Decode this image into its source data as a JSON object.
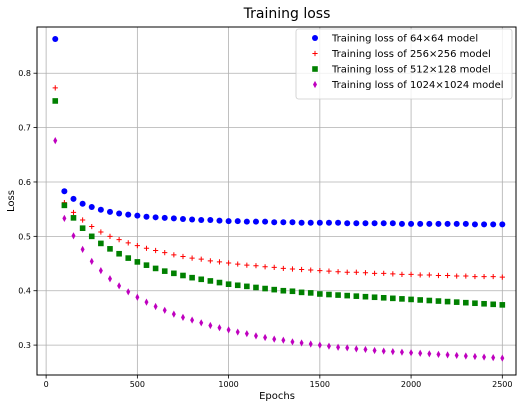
{
  "chart_data": {
    "type": "scatter",
    "title": "Training loss",
    "xlabel": "Epochs",
    "ylabel": "Loss",
    "xlim": [
      -50,
      2575
    ],
    "ylim": [
      0.245,
      0.885
    ],
    "xticks": [
      0,
      500,
      1000,
      1500,
      2000,
      2500
    ],
    "yticks": [
      0.3,
      0.4,
      0.5,
      0.6,
      0.7,
      0.8
    ],
    "grid": true,
    "legend_position": "top-right",
    "x": [
      50,
      100,
      150,
      200,
      250,
      300,
      350,
      400,
      450,
      500,
      550,
      600,
      650,
      700,
      750,
      800,
      850,
      900,
      950,
      1000,
      1050,
      1100,
      1150,
      1200,
      1250,
      1300,
      1350,
      1400,
      1450,
      1500,
      1550,
      1600,
      1650,
      1700,
      1750,
      1800,
      1850,
      1900,
      1950,
      2000,
      2050,
      2100,
      2150,
      2200,
      2250,
      2300,
      2350,
      2400,
      2450,
      2500
    ],
    "series": [
      {
        "name": "Training loss of 64×64 model",
        "color": "#0000ff",
        "marker": "circle",
        "values": [
          0.863,
          0.583,
          0.569,
          0.56,
          0.554,
          0.549,
          0.545,
          0.542,
          0.54,
          0.538,
          0.536,
          0.535,
          0.534,
          0.533,
          0.532,
          0.531,
          0.53,
          0.53,
          0.529,
          0.528,
          0.528,
          0.527,
          0.527,
          0.527,
          0.526,
          0.526,
          0.526,
          0.525,
          0.525,
          0.525,
          0.525,
          0.525,
          0.524,
          0.524,
          0.524,
          0.524,
          0.524,
          0.524,
          0.523,
          0.523,
          0.523,
          0.523,
          0.523,
          0.523,
          0.523,
          0.523,
          0.522,
          0.522,
          0.522,
          0.522
        ]
      },
      {
        "name": "Training loss of 256×256 model",
        "color": "#ff0000",
        "marker": "plus",
        "values": [
          0.773,
          0.562,
          0.544,
          0.53,
          0.518,
          0.508,
          0.5,
          0.494,
          0.488,
          0.483,
          0.478,
          0.474,
          0.47,
          0.466,
          0.463,
          0.46,
          0.458,
          0.455,
          0.453,
          0.451,
          0.449,
          0.447,
          0.446,
          0.444,
          0.443,
          0.441,
          0.44,
          0.439,
          0.438,
          0.437,
          0.436,
          0.435,
          0.434,
          0.434,
          0.433,
          0.432,
          0.432,
          0.431,
          0.43,
          0.43,
          0.429,
          0.429,
          0.428,
          0.428,
          0.427,
          0.427,
          0.426,
          0.426,
          0.426,
          0.425
        ]
      },
      {
        "name": "Training loss of 512×128 model",
        "color": "#008000",
        "marker": "square",
        "values": [
          0.749,
          0.557,
          0.534,
          0.515,
          0.5,
          0.487,
          0.477,
          0.468,
          0.46,
          0.453,
          0.447,
          0.441,
          0.436,
          0.432,
          0.428,
          0.424,
          0.421,
          0.418,
          0.415,
          0.412,
          0.41,
          0.408,
          0.406,
          0.404,
          0.402,
          0.4,
          0.399,
          0.397,
          0.396,
          0.394,
          0.393,
          0.392,
          0.391,
          0.39,
          0.389,
          0.388,
          0.387,
          0.386,
          0.385,
          0.384,
          0.383,
          0.382,
          0.381,
          0.38,
          0.379,
          0.378,
          0.377,
          0.376,
          0.375,
          0.374
        ]
      },
      {
        "name": "Training loss of 1024×1024 model",
        "color": "#bf00bf",
        "marker": "thin_diamond",
        "values": [
          0.676,
          0.533,
          0.501,
          0.476,
          0.454,
          0.437,
          0.422,
          0.409,
          0.398,
          0.388,
          0.379,
          0.371,
          0.364,
          0.357,
          0.351,
          0.346,
          0.341,
          0.336,
          0.332,
          0.328,
          0.324,
          0.321,
          0.317,
          0.314,
          0.311,
          0.309,
          0.306,
          0.304,
          0.302,
          0.3,
          0.298,
          0.296,
          0.295,
          0.293,
          0.292,
          0.29,
          0.289,
          0.288,
          0.287,
          0.286,
          0.285,
          0.284,
          0.283,
          0.282,
          0.281,
          0.28,
          0.279,
          0.278,
          0.277,
          0.276
        ]
      }
    ]
  }
}
